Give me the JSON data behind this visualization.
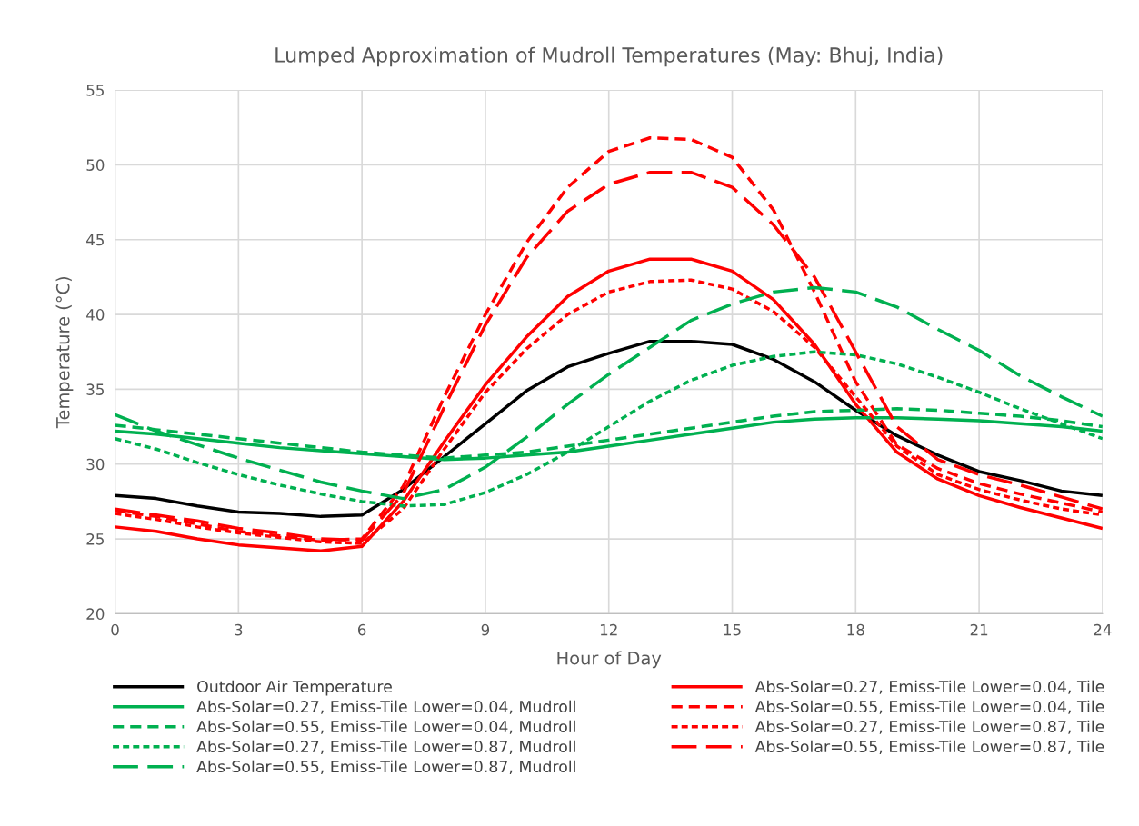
{
  "chart_data": {
    "type": "line",
    "title": "Lumped Approximation of Mudroll Temperatures (May: Bhuj, India)",
    "xlabel": "Hour of Day",
    "ylabel": "Temperature (°C)",
    "x": [
      0,
      1,
      2,
      3,
      4,
      5,
      6,
      7,
      8,
      9,
      10,
      11,
      12,
      13,
      14,
      15,
      16,
      17,
      18,
      19,
      20,
      21,
      22,
      23,
      24
    ],
    "xlim": [
      0,
      24
    ],
    "xticks": [
      0,
      3,
      6,
      9,
      12,
      15,
      18,
      21,
      24
    ],
    "ylim": [
      20,
      55
    ],
    "yticks": [
      20,
      25,
      30,
      35,
      40,
      45,
      50,
      55
    ],
    "grid": true,
    "legend": "bottom",
    "marker": "none",
    "series": [
      {
        "name": "Outdoor Air Temperature",
        "color": "#000000",
        "line_style": "solid",
        "values": [
          27.9,
          27.7,
          27.2,
          26.8,
          26.7,
          26.5,
          26.6,
          28.3,
          30.5,
          32.7,
          34.9,
          36.5,
          37.4,
          38.2,
          38.2,
          38.0,
          37.0,
          35.5,
          33.6,
          31.9,
          30.6,
          29.5,
          28.9,
          28.2,
          27.9
        ]
      },
      {
        "name": "Abs-Solar=0.27, Emiss-Tile Lower=0.04, Tile",
        "color": "#ff0000",
        "line_style": "solid",
        "values": [
          25.8,
          25.5,
          25.0,
          24.6,
          24.4,
          24.2,
          24.5,
          27.5,
          31.5,
          35.3,
          38.5,
          41.2,
          42.9,
          43.7,
          43.7,
          42.9,
          41.0,
          38.0,
          34.0,
          30.8,
          29.0,
          27.9,
          27.1,
          26.4,
          25.7
        ]
      },
      {
        "name": "Abs-Solar=0.27, Emiss-Tile Lower=0.04, Mudroll",
        "color": "#00b050",
        "line_style": "solid",
        "values": [
          32.2,
          32.0,
          31.7,
          31.4,
          31.1,
          30.9,
          30.7,
          30.5,
          30.3,
          30.4,
          30.6,
          30.8,
          31.2,
          31.6,
          32.0,
          32.4,
          32.8,
          33.0,
          33.1,
          33.1,
          33.0,
          32.9,
          32.7,
          32.5,
          32.2
        ]
      },
      {
        "name": "Abs-Solar=0.55, Emiss-Tile Lower=0.04, Tile",
        "color": "#ff0000",
        "line_style": "dashed",
        "values": [
          26.9,
          26.5,
          26.0,
          25.5,
          25.2,
          24.9,
          25.0,
          28.5,
          34.5,
          40.0,
          44.8,
          48.5,
          50.9,
          51.8,
          51.7,
          50.5,
          47.0,
          41.5,
          35.5,
          31.3,
          29.7,
          28.7,
          28.0,
          27.4,
          26.8
        ]
      },
      {
        "name": "Abs-Solar=0.55, Emiss-Tile Lower=0.04, Mudroll",
        "color": "#00b050",
        "line_style": "dashed",
        "values": [
          32.6,
          32.3,
          32.0,
          31.7,
          31.4,
          31.1,
          30.8,
          30.6,
          30.4,
          30.6,
          30.8,
          31.2,
          31.6,
          32.0,
          32.4,
          32.8,
          33.2,
          33.5,
          33.6,
          33.7,
          33.6,
          33.4,
          33.2,
          32.9,
          32.5
        ]
      },
      {
        "name": "Abs-Solar=0.27, Emiss-Tile Lower=0.87, Tile",
        "color": "#ff0000",
        "line_style": "dotted",
        "values": [
          26.7,
          26.3,
          25.8,
          25.4,
          25.1,
          24.8,
          24.7,
          27.0,
          31.0,
          34.8,
          37.7,
          40.0,
          41.5,
          42.2,
          42.3,
          41.7,
          40.2,
          37.8,
          34.5,
          31.2,
          29.3,
          28.3,
          27.6,
          27.0,
          26.6
        ]
      },
      {
        "name": "Abs-Solar=0.27, Emiss-Tile Lower=0.87, Mudroll",
        "color": "#00b050",
        "line_style": "dotted",
        "values": [
          31.7,
          31.0,
          30.1,
          29.3,
          28.6,
          28.0,
          27.5,
          27.2,
          27.3,
          28.1,
          29.3,
          30.8,
          32.5,
          34.2,
          35.6,
          36.6,
          37.2,
          37.5,
          37.3,
          36.7,
          35.8,
          34.8,
          33.7,
          32.7,
          31.7
        ]
      },
      {
        "name": "Abs-Solar=0.55, Emiss-Tile Lower=0.87, Tile",
        "color": "#ff0000",
        "line_style": "longdash",
        "values": [
          27.0,
          26.6,
          26.2,
          25.7,
          25.4,
          25.0,
          24.9,
          28.0,
          33.8,
          39.3,
          43.8,
          46.9,
          48.7,
          49.5,
          49.5,
          48.5,
          46.0,
          42.5,
          37.5,
          32.5,
          30.3,
          29.3,
          28.6,
          27.8,
          27.0
        ]
      },
      {
        "name": "Abs-Solar=0.55, Emiss-Tile Lower=0.87, Mudroll",
        "color": "#00b050",
        "line_style": "longdash",
        "values": [
          33.3,
          32.2,
          31.3,
          30.4,
          29.6,
          28.8,
          28.2,
          27.7,
          28.3,
          29.8,
          31.8,
          34.0,
          36.0,
          37.8,
          39.6,
          40.7,
          41.5,
          41.8,
          41.5,
          40.5,
          39.0,
          37.6,
          35.9,
          34.5,
          33.2
        ]
      }
    ]
  }
}
